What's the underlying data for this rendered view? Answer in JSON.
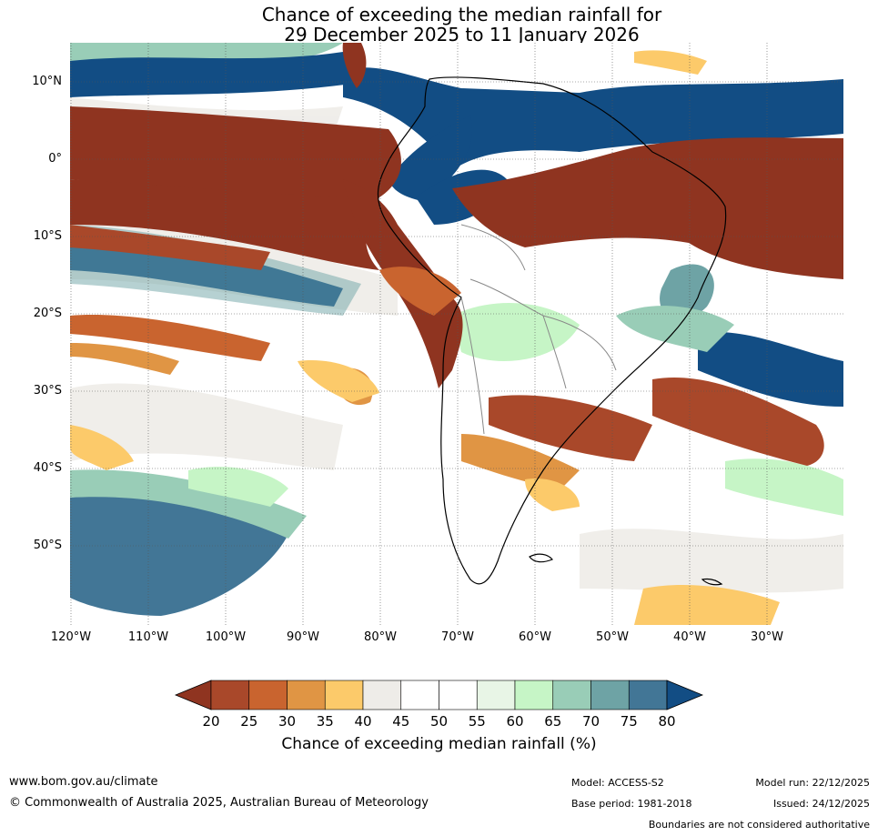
{
  "title": {
    "line1": "Chance of exceeding the median rainfall for",
    "line2": "29 December 2025 to 11 January 2026"
  },
  "map": {
    "region": "South America",
    "lat_labels": [
      "10°N",
      "0°",
      "10°S",
      "20°S",
      "30°S",
      "40°S",
      "50°S"
    ],
    "lon_labels": [
      "120°W",
      "110°W",
      "100°W",
      "90°W",
      "80°W",
      "70°W",
      "60°W",
      "50°W",
      "40°W",
      "30°W"
    ]
  },
  "colorbar": {
    "ticks": [
      "20",
      "25",
      "30",
      "35",
      "40",
      "45",
      "50",
      "55",
      "60",
      "65",
      "70",
      "75",
      "80"
    ],
    "label": "Chance of exceeding median rainfall (%)",
    "colors": [
      "#8f3420",
      "#a9482a",
      "#c9642f",
      "#e09544",
      "#fcca6a",
      "#eeece8",
      "#ffffff",
      "#ffffff",
      "#e8f5e6",
      "#c6f5c6",
      "#99cdb7",
      "#6ea3a5",
      "#427696",
      "#124d84"
    ]
  },
  "footer": {
    "url": "www.bom.gov.au/climate",
    "copyright": "© Commonwealth of Australia 2025, Australian Bureau of Meteorology",
    "model": "Model: ACCESS-S2",
    "base_period": "Base period: 1981-2018",
    "model_run": "Model run: 22/12/2025",
    "issued": "Issued: 24/12/2025",
    "disclaimer": "Boundaries are not considered authoritative"
  }
}
